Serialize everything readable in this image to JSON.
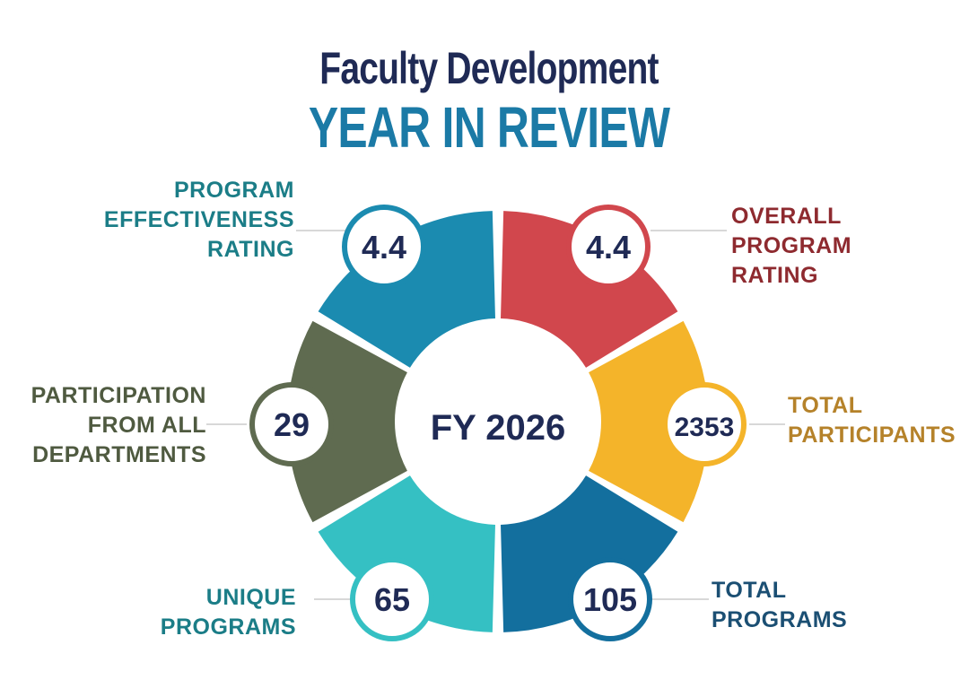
{
  "header": {
    "title_line1": "Faculty Development",
    "title_line2": "YEAR IN REVIEW"
  },
  "center_label": "FY 2026",
  "metrics": [
    {
      "key": "program-effectiveness-rating",
      "value": "4.4",
      "label_lines": [
        "PROGRAM",
        "EFFECTIVENESS",
        "RATING"
      ],
      "color": "#1b8bb0",
      "label_color": "#1b7d87"
    },
    {
      "key": "overall-program-rating",
      "value": "4.4",
      "label_lines": [
        "OVERALL",
        "PROGRAM",
        "RATING"
      ],
      "color": "#d1474d",
      "label_color": "#8e2a2f"
    },
    {
      "key": "total-participants",
      "value": "2353",
      "label_lines": [
        "TOTAL",
        "PARTICIPANTS"
      ],
      "color": "#f4b42a",
      "label_color": "#b5822a"
    },
    {
      "key": "total-programs",
      "value": "105",
      "label_lines": [
        "TOTAL",
        "PROGRAMS"
      ],
      "color": "#136f9e",
      "label_color": "#1b4f73"
    },
    {
      "key": "unique-programs",
      "value": "65",
      "label_lines": [
        "UNIQUE",
        "PROGRAMS"
      ],
      "color": "#35c0c3",
      "label_color": "#1b7d87"
    },
    {
      "key": "participation-from-all-departments",
      "value": "29",
      "label_lines": [
        "PARTICIPATION",
        "FROM ALL",
        "DEPARTMENTS"
      ],
      "color": "#5f6b50",
      "label_color": "#4f5a40"
    }
  ],
  "colors": {
    "title_dark": "#1f2a55",
    "title_accent": "#1b7aa6",
    "value_text": "#1f2a55"
  }
}
